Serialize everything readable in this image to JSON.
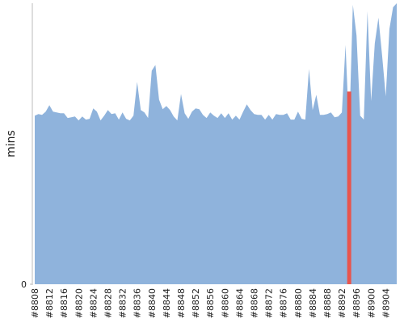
{
  "chart_data": {
    "type": "area",
    "y_label": "mins",
    "categories": [
      "#8808",
      null,
      null,
      null,
      "#8812",
      null,
      null,
      null,
      "#8816",
      null,
      null,
      null,
      "#8820",
      null,
      null,
      null,
      "#8824",
      null,
      null,
      null,
      "#8828",
      null,
      null,
      null,
      "#8832",
      null,
      null,
      null,
      "#8836",
      null,
      null,
      null,
      "#8840",
      null,
      null,
      null,
      "#8844",
      null,
      null,
      null,
      "#8848",
      null,
      null,
      null,
      "#8852",
      null,
      null,
      null,
      "#8856",
      null,
      null,
      null,
      "#8860",
      null,
      null,
      null,
      "#8864",
      null,
      null,
      null,
      "#8868",
      null,
      null,
      null,
      "#8872",
      null,
      null,
      null,
      "#8876",
      null,
      null,
      null,
      "#8880",
      null,
      null,
      null,
      "#8884",
      null,
      null,
      null,
      "#8888",
      null,
      null,
      null,
      "#8892",
      null,
      null,
      null,
      "#8896",
      null,
      null,
      null,
      "#8900",
      null,
      null,
      null,
      "#8904",
      null,
      null,
      null
    ],
    "series": [
      {
        "color": "#8fb3dc",
        "values": [
          210,
          212,
          211,
          215,
          223,
          215,
          214,
          213,
          213,
          207,
          208,
          209,
          204,
          209,
          205,
          206,
          219,
          215,
          204,
          210,
          217,
          212,
          213,
          205,
          214,
          206,
          204,
          210,
          252,
          217,
          214,
          207,
          266,
          273,
          230,
          218,
          222,
          217,
          209,
          204,
          237,
          213,
          206,
          215,
          219,
          218,
          211,
          207,
          214,
          210,
          207,
          213,
          207,
          213,
          205,
          210,
          205,
          215,
          224,
          217,
          212,
          211,
          211,
          205,
          211,
          205,
          212,
          211,
          211,
          213,
          205,
          205,
          215,
          206,
          205,
          268,
          217,
          236,
          211,
          211,
          212,
          214,
          208,
          209,
          214,
          298,
          190,
          348,
          310,
          210,
          205,
          340,
          228,
          300,
          332,
          285,
          234,
          318,
          345,
          350
        ]
      },
      {
        "color": "#e8554e",
        "type": "bar",
        "values": [
          null,
          null,
          null,
          null,
          null,
          null,
          null,
          null,
          null,
          null,
          null,
          null,
          null,
          null,
          null,
          null,
          null,
          null,
          null,
          null,
          null,
          null,
          null,
          null,
          null,
          null,
          null,
          null,
          null,
          null,
          null,
          null,
          null,
          null,
          null,
          null,
          null,
          null,
          null,
          null,
          null,
          null,
          null,
          null,
          null,
          null,
          null,
          null,
          null,
          null,
          null,
          null,
          null,
          null,
          null,
          null,
          null,
          null,
          null,
          null,
          null,
          null,
          null,
          null,
          null,
          null,
          null,
          null,
          null,
          null,
          null,
          null,
          null,
          null,
          null,
          null,
          null,
          null,
          null,
          null,
          null,
          null,
          null,
          null,
          null,
          null,
          240,
          null,
          null,
          null,
          null,
          null,
          null,
          null,
          null,
          null,
          null,
          null,
          null,
          null
        ]
      }
    ],
    "ylim": [
      0,
      350
    ],
    "yticks": [
      0
    ]
  }
}
